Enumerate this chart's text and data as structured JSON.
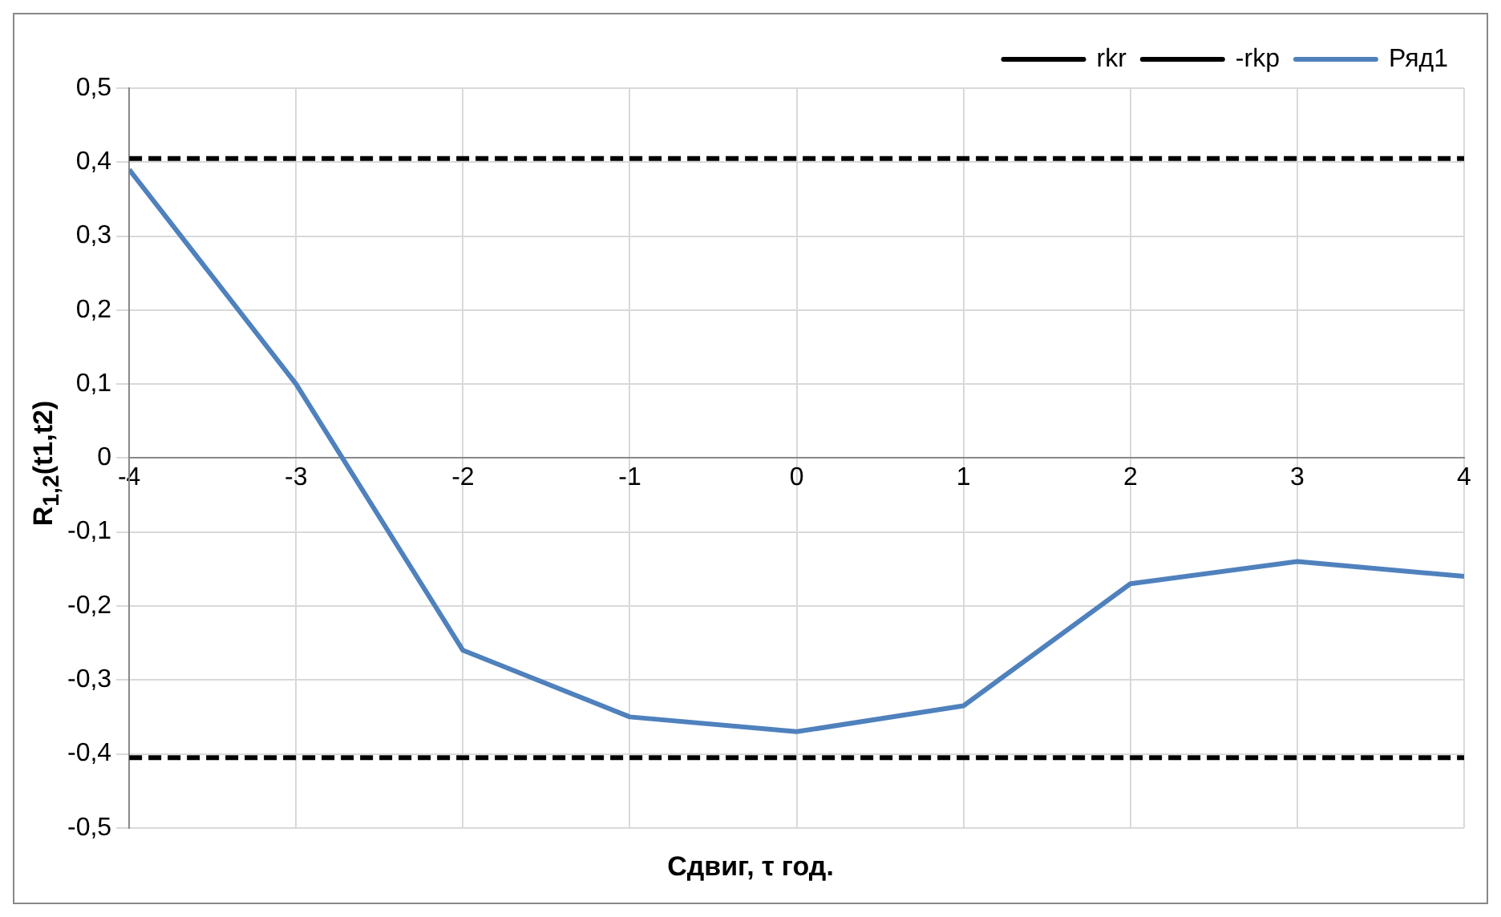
{
  "chart_data": {
    "type": "line",
    "xlabel": "Сдвиг, τ год.",
    "ylabel": "R$_{1,2}$(t1,t2)",
    "x": [
      -4,
      -3,
      -2,
      -1,
      0,
      1,
      2,
      3,
      4
    ],
    "series": [
      {
        "name": "rkr",
        "color": "#000000",
        "line_style": "dashed",
        "values": [
          0.405,
          0.405,
          0.405,
          0.405,
          0.405,
          0.405,
          0.405,
          0.405,
          0.405
        ]
      },
      {
        "name": "-rkp",
        "color": "#000000",
        "line_style": "dashed",
        "values": [
          -0.405,
          -0.405,
          -0.405,
          -0.405,
          -0.405,
          -0.405,
          -0.405,
          -0.405,
          -0.405
        ]
      },
      {
        "name": "Ряд1",
        "color": "#4f81bd",
        "line_style": "solid",
        "values": [
          0.39,
          0.1,
          -0.26,
          -0.35,
          -0.37,
          -0.335,
          -0.17,
          -0.14,
          -0.16
        ]
      }
    ],
    "xlim": [
      -4,
      4
    ],
    "xticks": [
      -4,
      -3,
      -2,
      -1,
      0,
      1,
      2,
      3,
      4
    ],
    "ylim": [
      -0.5,
      0.5
    ],
    "yticks": [
      {
        "value": -0.5,
        "label": "-0,5"
      },
      {
        "value": -0.4,
        "label": "-0,4"
      },
      {
        "value": -0.3,
        "label": "-0,3"
      },
      {
        "value": -0.2,
        "label": "-0,2"
      },
      {
        "value": -0.1,
        "label": "-0,1"
      },
      {
        "value": 0,
        "label": "0"
      },
      {
        "value": 0.1,
        "label": "0,1"
      },
      {
        "value": 0.2,
        "label": "0,2"
      },
      {
        "value": 0.3,
        "label": "0,3"
      },
      {
        "value": 0.4,
        "label": "0,4"
      },
      {
        "value": 0.5,
        "label": "0,5"
      }
    ],
    "grid": true,
    "legend": "top right",
    "marker": "none"
  }
}
